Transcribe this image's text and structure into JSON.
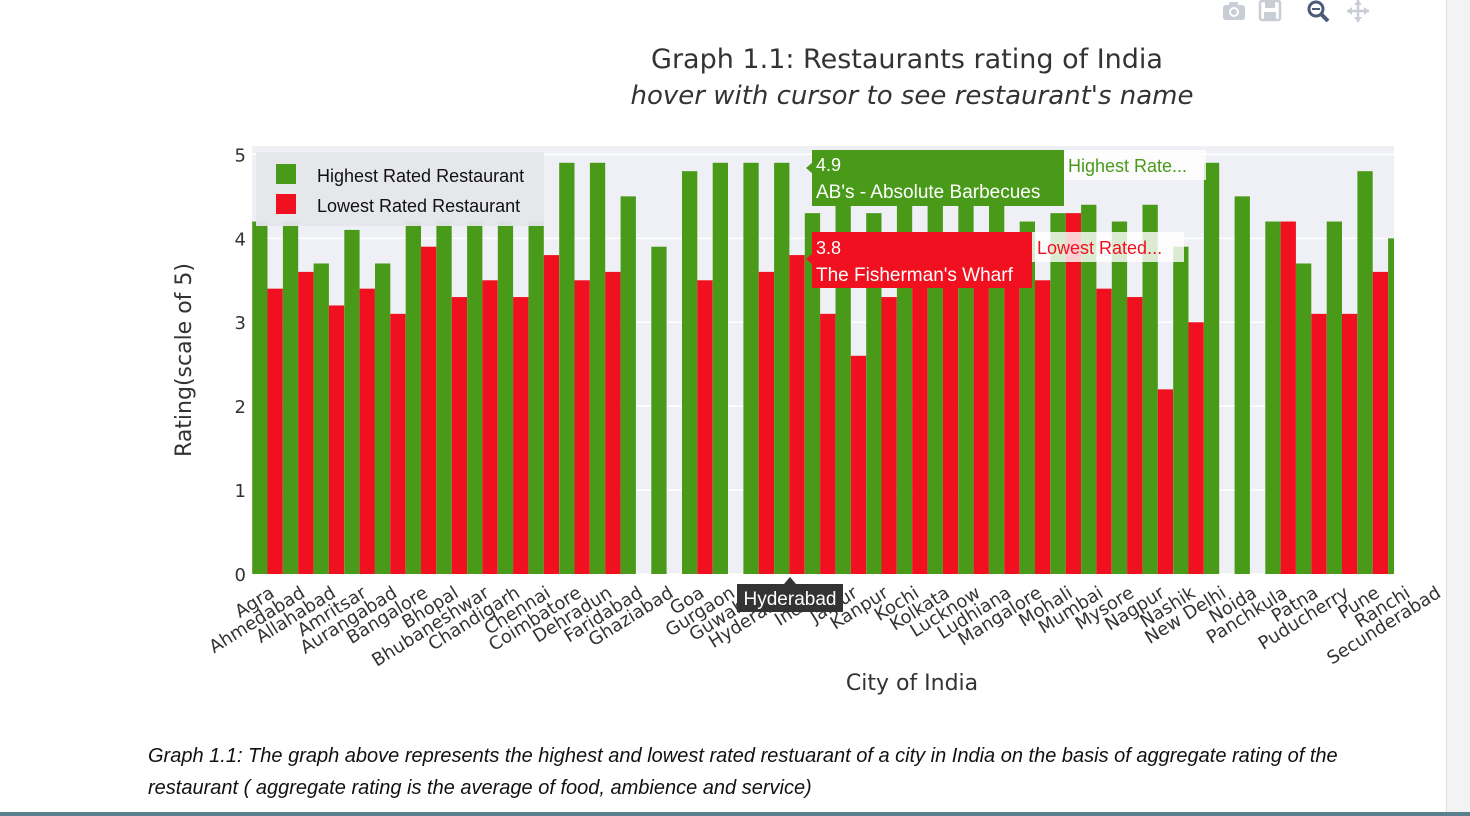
{
  "title": "Graph 1.1: Restaurants rating of India",
  "subtitle": "hover with cursor to see restaurant's name",
  "caption": "Graph 1.1: The graph above represents the highest and lowest rated restuarant of a city in India on the basis of aggregate rating of the restaurant ( aggregate rating is the average of food, ambience and service)",
  "colors": {
    "highest": "#4a9a1a",
    "lowest": "#f01020",
    "plot_bg": "#eef0f5"
  },
  "modebar": [
    "camera-icon",
    "save-icon",
    "zoom-icon",
    "pan-icon"
  ],
  "tooltips": {
    "highest": {
      "value": "4.9",
      "name": "AB's - Absolute Barbecues",
      "series": "Highest Rate..."
    },
    "lowest": {
      "value": "3.8",
      "name": "The Fisherman's Wharf",
      "series": "Lowest Rated..."
    },
    "x_label": "Hyderabad"
  },
  "chart_data": {
    "type": "bar",
    "title": "Graph 1.1: Restaurants rating of India",
    "subtitle": "hover with cursor to see restaurant's name",
    "xlabel": "City of India",
    "ylabel": "Rating(scale of 5)",
    "ylim": [
      0,
      5.1
    ],
    "yticks": [
      0,
      1,
      2,
      3,
      4,
      5
    ],
    "grid": true,
    "legend": "top-left",
    "categories": [
      "Agra",
      "Ahmedabad",
      "Allahabad",
      "Amritsar",
      "Aurangabad",
      "Bangalore",
      "Bhopal",
      "Bhubaneshwar",
      "Chandigarh",
      "Chennai",
      "Coimbatore",
      "Dehradun",
      "Faridabad",
      "Ghaziabad",
      "Goa",
      "Gurgaon",
      "Guwahati",
      "Hyderabad",
      "Indore",
      "Jaipur",
      "Kanpur",
      "Kochi",
      "Kolkata",
      "Lucknow",
      "Ludhiana",
      "Mangalore",
      "Mohali",
      "Mumbai",
      "Mysore",
      "Nagpur",
      "Nashik",
      "New Delhi",
      "Noida",
      "Panchkula",
      "Patna",
      "Puducherry",
      "Pune",
      "Ranchi",
      "Secunderabad"
    ],
    "series": [
      {
        "name": "Highest Rated Restaurant",
        "values": [
          4.2,
          4.2,
          3.7,
          4.1,
          3.7,
          4.2,
          4.2,
          4.2,
          4.2,
          4.2,
          4.9,
          4.9,
          4.5,
          3.9,
          4.8,
          4.9,
          4.9,
          4.9,
          4.3,
          4.4,
          4.3,
          4.4,
          4.4,
          4.4,
          4.4,
          4.2,
          4.3,
          4.4,
          4.2,
          4.4,
          3.9,
          4.9,
          4.5,
          4.2,
          3.7,
          4.2,
          4.8,
          4.0,
          null
        ]
      },
      {
        "name": "Lowest Rated Restaurant",
        "values": [
          3.4,
          3.6,
          3.2,
          3.4,
          3.1,
          3.9,
          3.3,
          3.5,
          3.3,
          3.8,
          3.5,
          3.6,
          null,
          null,
          3.5,
          null,
          3.6,
          3.8,
          3.1,
          2.6,
          3.3,
          3.5,
          3.5,
          3.5,
          3.5,
          3.5,
          4.3,
          3.4,
          3.3,
          2.2,
          3.0,
          null,
          null,
          4.2,
          3.1,
          3.1,
          3.6,
          null,
          null
        ]
      }
    ]
  }
}
